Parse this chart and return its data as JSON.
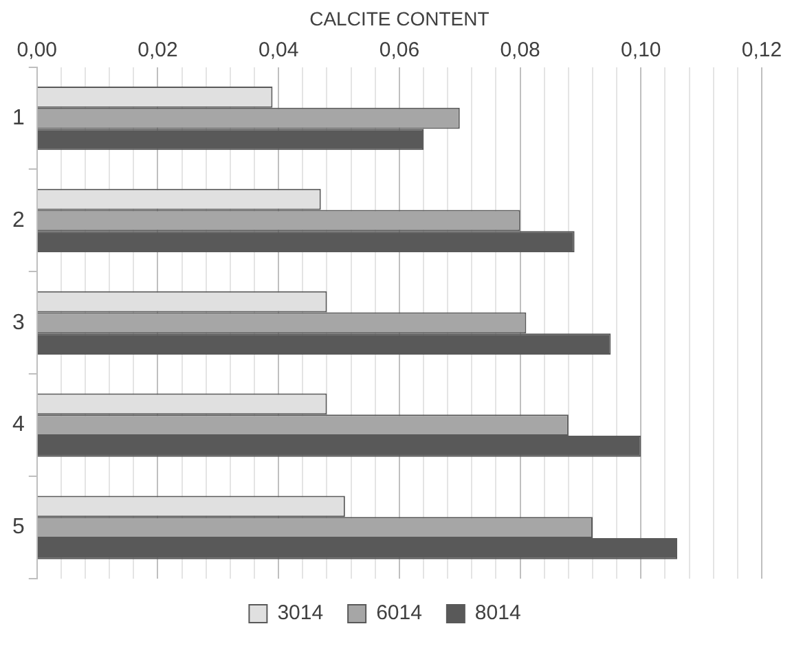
{
  "chart_data": {
    "type": "bar",
    "orientation": "horizontal",
    "xlabel": "CALCITE CONTENT",
    "categories": [
      "1",
      "2",
      "3",
      "4",
      "5"
    ],
    "series": [
      {
        "name": "3014",
        "color": "#e0e0e0",
        "values": [
          0.039,
          0.047,
          0.048,
          0.048,
          0.051
        ]
      },
      {
        "name": "6014",
        "color": "#a6a6a6",
        "values": [
          0.07,
          0.08,
          0.081,
          0.088,
          0.092
        ]
      },
      {
        "name": "8014",
        "color": "#595959",
        "values": [
          0.064,
          0.089,
          0.095,
          0.1,
          0.106
        ]
      }
    ],
    "xlim": [
      0,
      0.12
    ],
    "xticks": [
      {
        "value": 0,
        "label": "0,00"
      },
      {
        "value": 0.004,
        "label": null
      },
      {
        "value": 0.008,
        "label": null
      },
      {
        "value": 0.012,
        "label": null
      },
      {
        "value": 0.016,
        "label": null
      },
      {
        "value": 0.02,
        "label": "0,02"
      },
      {
        "value": 0.024,
        "label": null
      },
      {
        "value": 0.028,
        "label": null
      },
      {
        "value": 0.032,
        "label": null
      },
      {
        "value": 0.036,
        "label": null
      },
      {
        "value": 0.04,
        "label": "0,04"
      },
      {
        "value": 0.044,
        "label": null
      },
      {
        "value": 0.048,
        "label": null
      },
      {
        "value": 0.052,
        "label": null
      },
      {
        "value": 0.056,
        "label": null
      },
      {
        "value": 0.06,
        "label": "0,06"
      },
      {
        "value": 0.064,
        "label": null
      },
      {
        "value": 0.068,
        "label": null
      },
      {
        "value": 0.072,
        "label": null
      },
      {
        "value": 0.076,
        "label": null
      },
      {
        "value": 0.08,
        "label": "0,08"
      },
      {
        "value": 0.084,
        "label": null
      },
      {
        "value": 0.088,
        "label": null
      },
      {
        "value": 0.092,
        "label": null
      },
      {
        "value": 0.096,
        "label": null
      },
      {
        "value": 0.1,
        "label": "0,10"
      },
      {
        "value": 0.104,
        "label": null
      },
      {
        "value": 0.108,
        "label": null
      },
      {
        "value": 0.112,
        "label": null
      },
      {
        "value": 0.116,
        "label": null
      },
      {
        "value": 0.12,
        "label": "0,12"
      }
    ],
    "grid": "x",
    "legend": "bottom"
  }
}
